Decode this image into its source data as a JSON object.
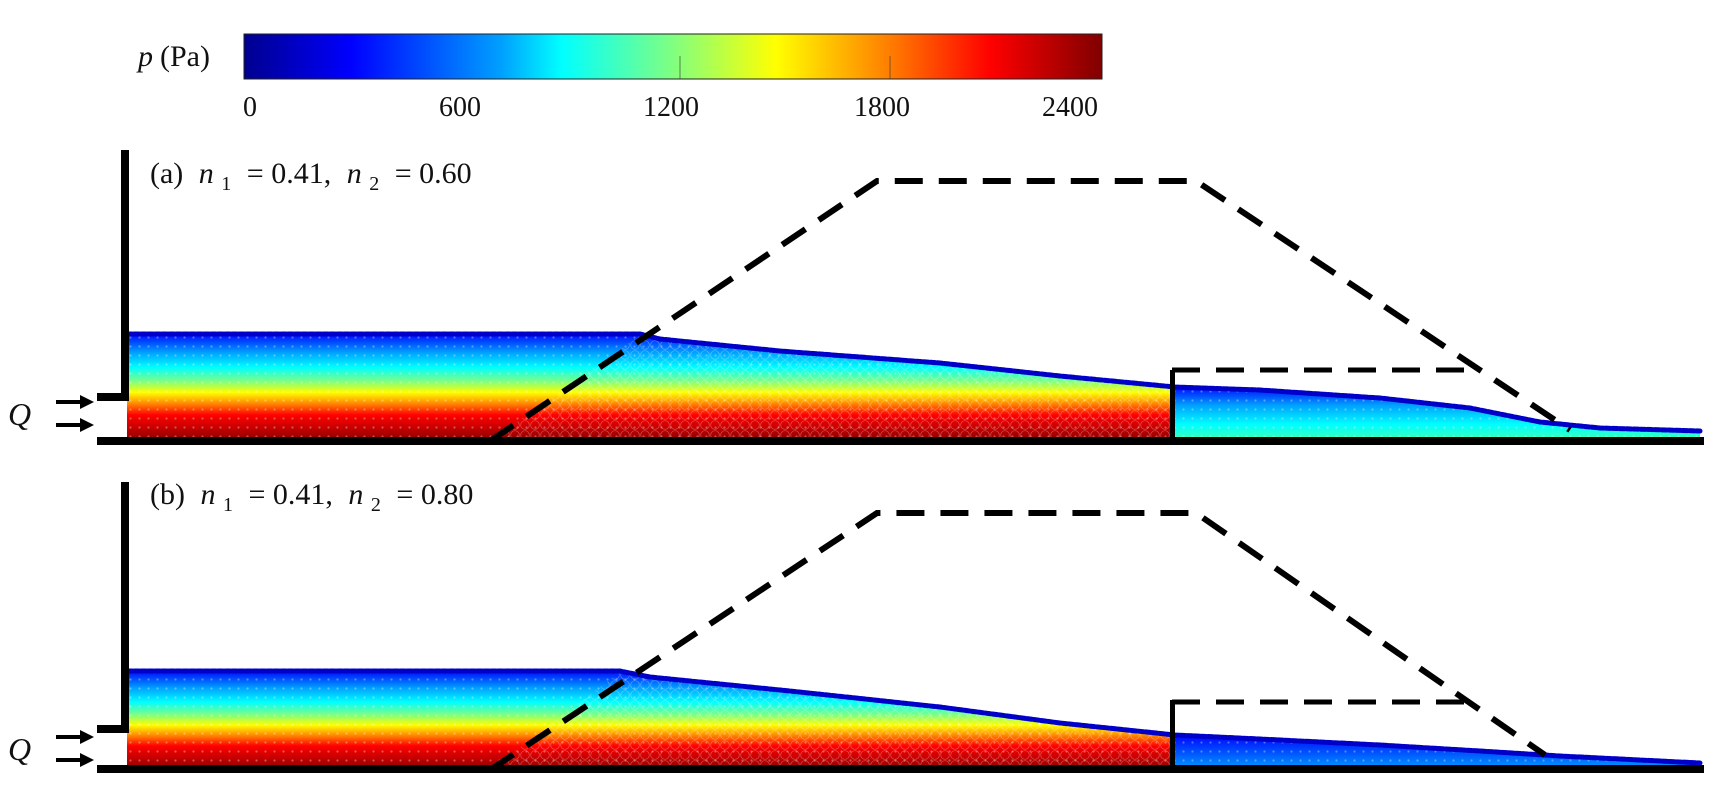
{
  "colorbar": {
    "label_var": "p",
    "label_unit": "(Pa)",
    "ticks": [
      "0",
      "600",
      "1200",
      "1800",
      "2400"
    ],
    "min": 0,
    "max": 2400,
    "colors": [
      "#00008f",
      "#0000ff",
      "#00a0ff",
      "#00ffff",
      "#80ff80",
      "#ffff00",
      "#ff8000",
      "#ff0000",
      "#800000"
    ]
  },
  "panels": [
    {
      "id": "a",
      "label_prefix": "(a)",
      "n1_symbol": "n",
      "n1_sub": "1",
      "n1_value": "= 0.41,",
      "n2_symbol": "n",
      "n2_sub": "2",
      "n2_value": "= 0.60",
      "inflow_label": "Q",
      "surface_profile": [
        [
          0,
          0.0
        ],
        [
          0.3,
          0.0
        ],
        [
          0.33,
          0.01
        ],
        [
          0.45,
          0.06
        ],
        [
          0.57,
          0.16
        ],
        [
          0.63,
          0.19
        ],
        [
          0.72,
          0.2
        ],
        [
          0.86,
          0.27
        ],
        [
          1.0,
          0.33
        ]
      ],
      "colors_top": "#0000cc"
    },
    {
      "id": "b",
      "label_prefix": "(b)",
      "n1_symbol": "n",
      "n1_sub": "1",
      "n1_value": "= 0.41,",
      "n2_symbol": "n",
      "n2_sub": "2",
      "n2_value": "= 0.80",
      "inflow_label": "Q",
      "surface_profile": [
        [
          0,
          0.0
        ],
        [
          0.3,
          0.0
        ],
        [
          0.33,
          0.01
        ],
        [
          0.45,
          0.08
        ],
        [
          0.57,
          0.2
        ],
        [
          0.63,
          0.24
        ],
        [
          0.72,
          0.26
        ],
        [
          0.86,
          0.31
        ],
        [
          1.0,
          0.35
        ]
      ],
      "colors_top": "#0000cc"
    }
  ]
}
